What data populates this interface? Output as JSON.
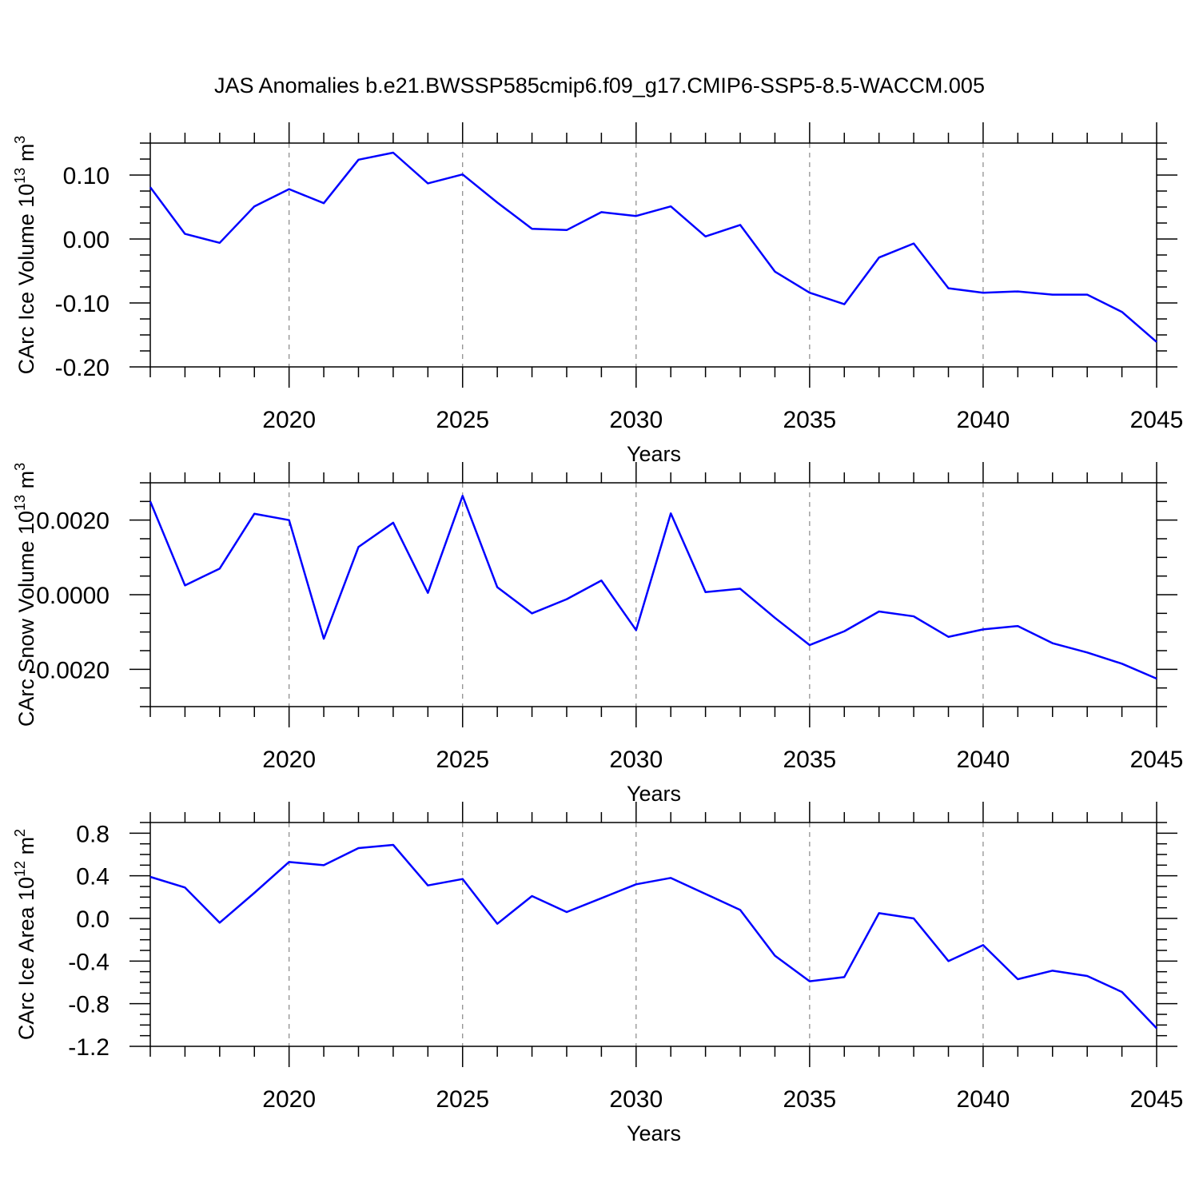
{
  "title": "JAS Anomalies b.e21.BWSSP585cmip6.f09_g17.CMIP6-SSP5-8.5-WACCM.005",
  "chart_data": [
    {
      "type": "line",
      "xlabel": "Years",
      "ylabel": {
        "text": "CArc Ice Volume 10",
        "sup": "13",
        "unit": " m",
        "unit_sup": "3"
      },
      "xlim": [
        2016,
        2045
      ],
      "ylim": [
        -0.2,
        0.15
      ],
      "xticks": [
        2020,
        2025,
        2030,
        2035,
        2040,
        2045
      ],
      "yticks": [
        -0.2,
        -0.1,
        0.0,
        0.1
      ],
      "ytick_labels": [
        "-0.20",
        "-0.10",
        "0.00",
        "0.10"
      ],
      "series": [
        {
          "name": "CArc Ice Volume",
          "x": [
            2016,
            2017,
            2018,
            2019,
            2020,
            2021,
            2022,
            2023,
            2024,
            2025,
            2026,
            2027,
            2028,
            2029,
            2030,
            2031,
            2032,
            2033,
            2034,
            2035,
            2036,
            2037,
            2038,
            2039,
            2040,
            2041,
            2042,
            2043,
            2044,
            2045
          ],
          "values": [
            0.081,
            0.008,
            -0.006,
            0.051,
            0.078,
            0.056,
            0.124,
            0.135,
            0.087,
            0.101,
            0.057,
            0.016,
            0.014,
            0.042,
            0.036,
            0.051,
            0.004,
            0.022,
            -0.051,
            -0.084,
            -0.102,
            -0.029,
            -0.007,
            -0.077,
            -0.084,
            -0.082,
            -0.087,
            -0.087,
            -0.114,
            -0.161
          ],
          "color": "#0000ff"
        }
      ]
    },
    {
      "type": "line",
      "xlabel": "Years",
      "ylabel": {
        "text": "CArc Snow Volume 10",
        "sup": "13",
        "unit": " m",
        "unit_sup": "3"
      },
      "xlim": [
        2016,
        2045
      ],
      "ylim": [
        -0.003,
        0.003
      ],
      "xticks": [
        2020,
        2025,
        2030,
        2035,
        2040,
        2045
      ],
      "yticks": [
        -0.002,
        0.0,
        0.002
      ],
      "ytick_labels": [
        "-0.0020",
        "0.0000",
        "0.0020"
      ],
      "series": [
        {
          "name": "CArc Snow Volume",
          "x": [
            2016,
            2017,
            2018,
            2019,
            2020,
            2021,
            2022,
            2023,
            2024,
            2025,
            2026,
            2027,
            2028,
            2029,
            2030,
            2031,
            2032,
            2033,
            2034,
            2035,
            2036,
            2037,
            2038,
            2039,
            2040,
            2041,
            2042,
            2043,
            2044,
            2045
          ],
          "values": [
            0.0025,
            0.00025,
            0.0007,
            0.00217,
            0.002,
            -0.00118,
            0.00128,
            0.00193,
            5e-05,
            0.00265,
            0.0002,
            -0.0005,
            -0.00012,
            0.00038,
            -0.00095,
            0.00218,
            7e-05,
            0.00016,
            -0.00062,
            -0.00135,
            -0.00098,
            -0.00045,
            -0.00058,
            -0.00113,
            -0.00093,
            -0.00084,
            -0.0013,
            -0.00155,
            -0.00185,
            -0.00225
          ],
          "color": "#0000ff"
        }
      ]
    },
    {
      "type": "line",
      "xlabel": "Years",
      "ylabel": {
        "text": "CArc Ice Area 10",
        "sup": "12",
        "unit": " m",
        "unit_sup": "2"
      },
      "xlim": [
        2016,
        2045
      ],
      "ylim": [
        -1.2,
        0.9
      ],
      "xticks": [
        2020,
        2025,
        2030,
        2035,
        2040,
        2045
      ],
      "yticks": [
        -1.2,
        -0.8,
        -0.4,
        0.0,
        0.4,
        0.8
      ],
      "ytick_labels": [
        "-1.2",
        "-0.8",
        "-0.4",
        "0.0",
        "0.4",
        "0.8"
      ],
      "series": [
        {
          "name": "CArc Ice Area",
          "x": [
            2016,
            2017,
            2018,
            2019,
            2020,
            2021,
            2022,
            2023,
            2024,
            2025,
            2026,
            2027,
            2028,
            2029,
            2030,
            2031,
            2032,
            2033,
            2034,
            2035,
            2036,
            2037,
            2038,
            2039,
            2040,
            2041,
            2042,
            2043,
            2044,
            2045
          ],
          "values": [
            0.39,
            0.29,
            -0.04,
            0.24,
            0.53,
            0.5,
            0.66,
            0.69,
            0.31,
            0.37,
            -0.05,
            0.21,
            0.06,
            0.19,
            0.32,
            0.38,
            0.23,
            0.08,
            -0.35,
            -0.59,
            -0.55,
            0.05,
            0.0,
            -0.4,
            -0.25,
            -0.57,
            -0.49,
            -0.54,
            -0.69,
            -1.03
          ],
          "color": "#0000ff"
        }
      ]
    }
  ]
}
